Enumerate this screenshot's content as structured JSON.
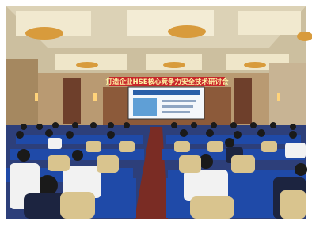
{
  "banner": {
    "text": "打造企业HSE核心竞争力安全技术研讨会"
  }
}
